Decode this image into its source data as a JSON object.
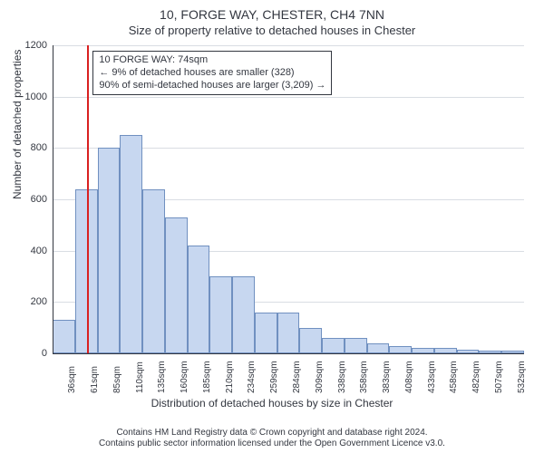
{
  "title": "10, FORGE WAY, CHESTER, CH4 7NN",
  "subtitle": "Size of property relative to detached houses in Chester",
  "ylabel": "Number of detached properties",
  "xlabel": "Distribution of detached houses by size in Chester",
  "footer_line1": "Contains HM Land Registry data © Crown copyright and database right 2024.",
  "footer_line2": "Contains public sector information licensed under the Open Government Licence v3.0.",
  "chart": {
    "type": "histogram",
    "bar_fill": "#c7d7f0",
    "bar_stroke": "#7090c0",
    "grid_color": "#d9dde3",
    "axis_color": "#333740",
    "marker_color": "#d92020",
    "annotation_border": "#333740",
    "text_color": "#333740",
    "font_family": "Arial",
    "title_fontsize": 14,
    "subtitle_fontsize": 13,
    "label_fontsize": 12,
    "tick_fontsize": 11,
    "xtick_fontsize": 10,
    "ylim": [
      0,
      1200
    ],
    "yticks": [
      0,
      200,
      400,
      600,
      800,
      1000,
      1200
    ],
    "xticks": [
      "36sqm",
      "61sqm",
      "85sqm",
      "110sqm",
      "135sqm",
      "160sqm",
      "185sqm",
      "210sqm",
      "234sqm",
      "259sqm",
      "284sqm",
      "309sqm",
      "338sqm",
      "358sqm",
      "383sqm",
      "408sqm",
      "433sqm",
      "458sqm",
      "482sqm",
      "507sqm",
      "532sqm"
    ],
    "bars": [
      130,
      640,
      800,
      850,
      640,
      530,
      420,
      300,
      300,
      160,
      160,
      100,
      60,
      60,
      40,
      30,
      20,
      20,
      15,
      10,
      10
    ],
    "bar_count": 21,
    "marker_bin_index": 1.55,
    "annotation": {
      "line1": "10 FORGE WAY: 74sqm",
      "line2": "← 9% of detached houses are smaller (328)",
      "line3": "90% of semi-detached houses are larger (3,209) →"
    }
  }
}
